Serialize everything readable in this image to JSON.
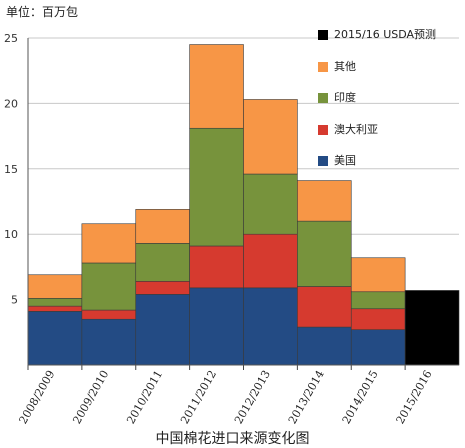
{
  "unit_label": "单位：百万包",
  "chart_title": "中国棉花进口来源变化图",
  "legend": [
    {
      "label": "2015/16 USDA预测",
      "color": "#000000"
    },
    {
      "label": "其他",
      "color": "#F79646"
    },
    {
      "label": "印度",
      "color": "#77933C"
    },
    {
      "label": "澳大利亚",
      "color": "#D63A2F"
    },
    {
      "label": "美国",
      "color": "#234B84"
    }
  ],
  "chart_data": {
    "type": "bar",
    "stacked": true,
    "categories": [
      "2008/2009",
      "2009/2010",
      "2010/2011",
      "2011/2012",
      "2012/2013",
      "2013/2014",
      "2014/2015",
      "2015/2016"
    ],
    "series": [
      {
        "name": "美国",
        "color": "#234B84",
        "values": [
          4.1,
          3.5,
          5.4,
          5.9,
          5.9,
          2.9,
          2.7,
          0
        ]
      },
      {
        "name": "澳大利亚",
        "color": "#D63A2F",
        "values": [
          0.4,
          0.7,
          1.0,
          3.2,
          4.1,
          3.1,
          1.6,
          0
        ]
      },
      {
        "name": "印度",
        "color": "#77933C",
        "values": [
          0.6,
          3.6,
          2.9,
          9.0,
          4.6,
          5.0,
          1.3,
          0
        ]
      },
      {
        "name": "其他",
        "color": "#F79646",
        "values": [
          1.8,
          3.0,
          2.6,
          6.4,
          5.7,
          3.1,
          2.6,
          0
        ]
      },
      {
        "name": "2015/16 USDA预测",
        "color": "#000000",
        "values": [
          0,
          0,
          0,
          0,
          0,
          0,
          0,
          5.7
        ]
      }
    ],
    "ylim": [
      0,
      25
    ],
    "yticks": [
      5,
      10,
      15,
      20,
      25
    ],
    "grid": true,
    "legend_position": "top-right"
  }
}
